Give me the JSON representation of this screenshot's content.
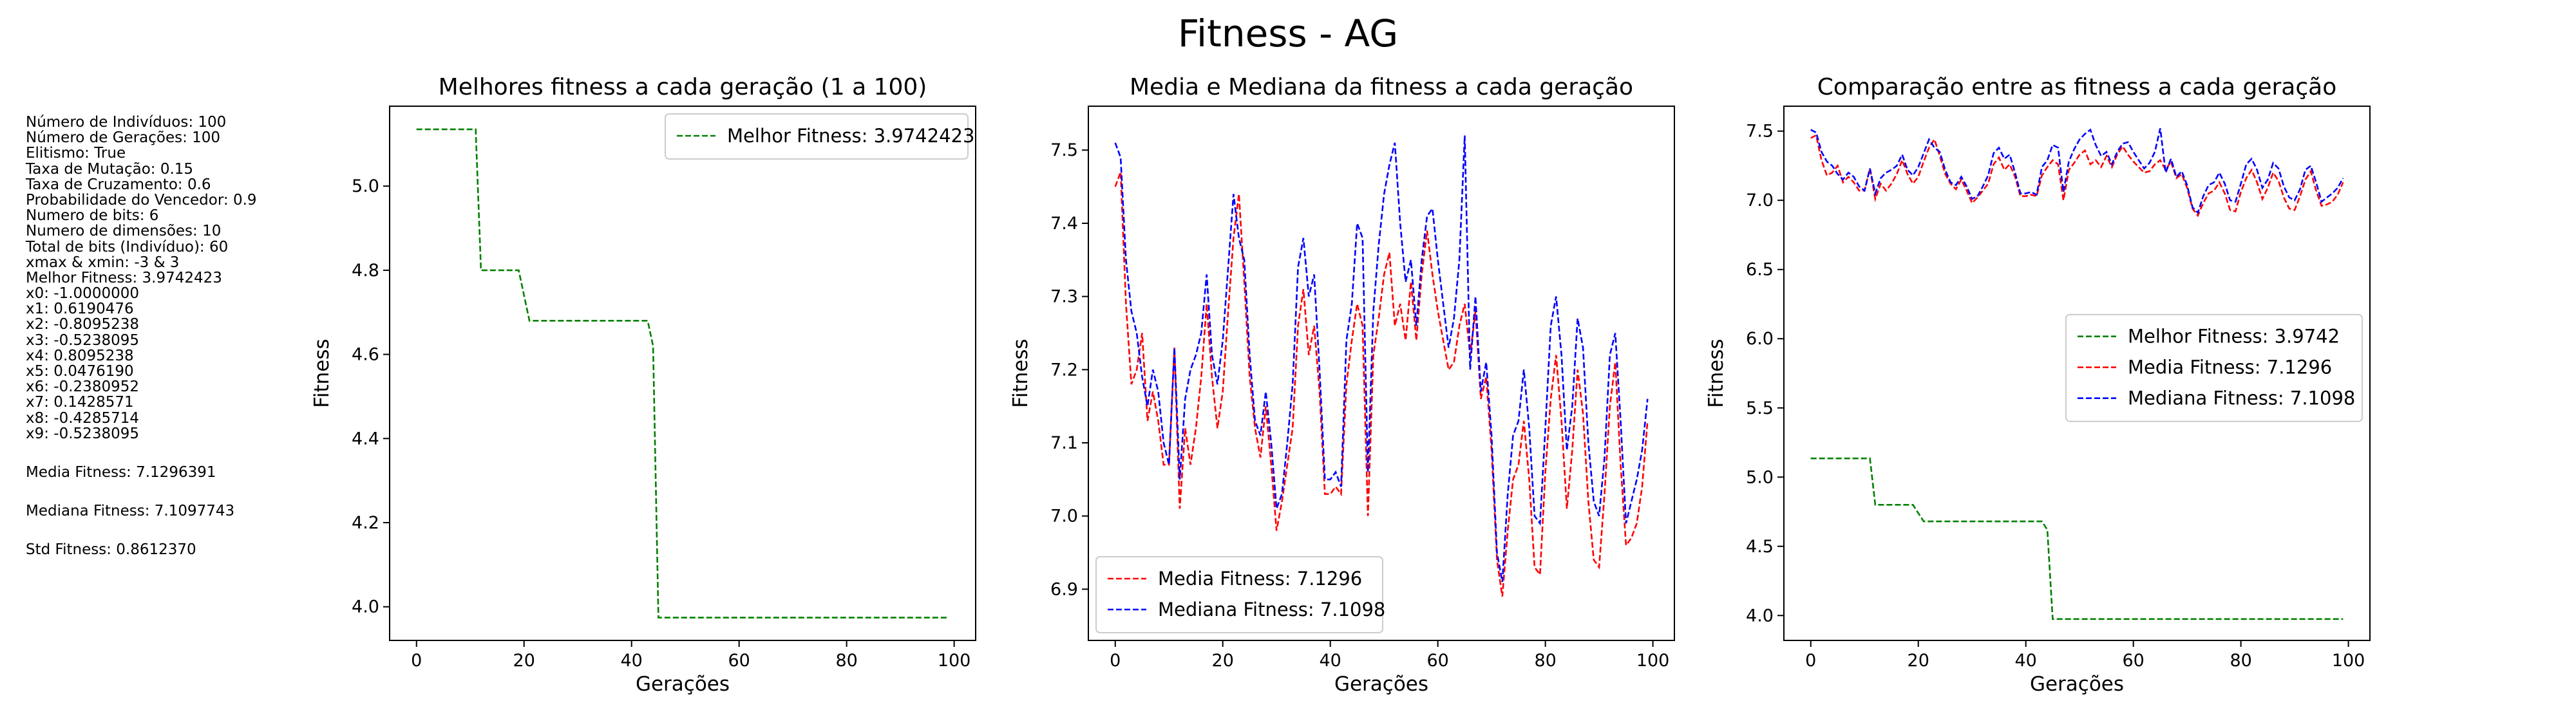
{
  "figure": {
    "suptitle": "Fitness - AG"
  },
  "info_panel": {
    "lines": [
      "Número de Indivíduos: 100",
      "Número de Gerações: 100",
      "Elitismo: True",
      "Taxa de Mutação: 0.15",
      "Taxa de Cruzamento: 0.6",
      "Probabilidade do Vencedor: 0.9",
      "Numero de bits: 6",
      "Numero de dimensões: 10",
      "Total de bits (Indivíduo): 60",
      "xmax & xmin: -3 & 3",
      "Melhor Fitness: 3.9742423",
      "x0: -1.0000000",
      "x1: 0.6190476",
      "x2: -0.8095238",
      "x3: -0.5238095",
      "x4: 0.8095238",
      "x5: 0.0476190",
      "x6: -0.2380952",
      "x7: 0.1428571",
      "x8: -0.4285714",
      "x9: -0.5238095"
    ],
    "media": "Media Fitness: 7.1296391",
    "mediana": "Mediana Fitness: 7.1097743",
    "std": "Std Fitness: 0.8612370"
  },
  "colors": {
    "best": "#008000",
    "media": "#ff0000",
    "mediana": "#0000ff"
  },
  "chart_data": [
    {
      "type": "line",
      "title": "Melhores fitness a cada geração (1 a 100)",
      "xlabel": "Gerações",
      "ylabel": "Fitness",
      "xlim": [
        -5,
        104
      ],
      "ylim": [
        3.92,
        5.19
      ],
      "xticks": [
        0,
        20,
        40,
        60,
        80,
        100
      ],
      "yticks": [
        4.0,
        4.2,
        4.4,
        4.6,
        4.8,
        5.0
      ],
      "ytick_labels": [
        "4.0",
        "4.2",
        "4.4",
        "4.6",
        "4.8",
        "5.0"
      ],
      "legend_loc": "upper right",
      "grid": false,
      "series": [
        {
          "name": "Melhor Fitness: 3.9742423",
          "color": "#008000",
          "style": "dashed",
          "points": [
            [
              0,
              5.135
            ],
            [
              11,
              5.135
            ],
            [
              12,
              4.8
            ],
            [
              19,
              4.8
            ],
            [
              21,
              4.68
            ],
            [
              43,
              4.68
            ],
            [
              44,
              4.62
            ],
            [
              45,
              3.9742
            ],
            [
              99,
              3.9742
            ]
          ]
        }
      ]
    },
    {
      "type": "line",
      "title": "Media e Mediana da fitness a cada geração",
      "xlabel": "Gerações",
      "ylabel": "Fitness",
      "xlim": [
        -5,
        104
      ],
      "ylim": [
        6.83,
        7.56
      ],
      "xticks": [
        0,
        20,
        40,
        60,
        80,
        100
      ],
      "yticks": [
        6.9,
        7.0,
        7.1,
        7.2,
        7.3,
        7.4,
        7.5
      ],
      "ytick_labels": [
        "6.9",
        "7.0",
        "7.1",
        "7.2",
        "7.3",
        "7.4",
        "7.5"
      ],
      "legend_loc": "lower left",
      "grid": false,
      "series": [
        {
          "name": "Media Fitness: 7.1296",
          "color": "#ff0000",
          "style": "dashed",
          "values": [
            7.45,
            7.47,
            7.29,
            7.18,
            7.2,
            7.25,
            7.13,
            7.17,
            7.13,
            7.07,
            7.07,
            7.23,
            7.01,
            7.12,
            7.07,
            7.12,
            7.19,
            7.29,
            7.19,
            7.12,
            7.17,
            7.28,
            7.38,
            7.44,
            7.32,
            7.19,
            7.12,
            7.08,
            7.15,
            7.07,
            6.98,
            7.02,
            7.07,
            7.12,
            7.26,
            7.31,
            7.22,
            7.26,
            7.17,
            7.03,
            7.03,
            7.04,
            7.03,
            7.18,
            7.24,
            7.29,
            7.26,
            7.0,
            7.22,
            7.27,
            7.33,
            7.36,
            7.26,
            7.29,
            7.24,
            7.32,
            7.24,
            7.33,
            7.39,
            7.33,
            7.28,
            7.24,
            7.2,
            7.21,
            7.26,
            7.29,
            7.22,
            7.28,
            7.16,
            7.19,
            7.09,
            6.94,
            6.89,
            6.98,
            7.05,
            7.07,
            7.13,
            7.05,
            6.93,
            6.92,
            7.06,
            7.16,
            7.22,
            7.13,
            7.01,
            7.09,
            7.2,
            7.14,
            7.02,
            6.94,
            6.93,
            7.03,
            7.15,
            7.21,
            7.07,
            6.96,
            6.97,
            6.99,
            7.04,
            7.13
          ]
        },
        {
          "name": "Mediana Fitness: 7.1098",
          "color": "#0000ff",
          "style": "dashed",
          "values": [
            7.51,
            7.49,
            7.35,
            7.28,
            7.25,
            7.19,
            7.15,
            7.2,
            7.17,
            7.1,
            7.07,
            7.23,
            7.05,
            7.16,
            7.2,
            7.22,
            7.25,
            7.33,
            7.22,
            7.18,
            7.24,
            7.34,
            7.44,
            7.38,
            7.35,
            7.22,
            7.13,
            7.11,
            7.17,
            7.1,
            7.01,
            7.03,
            7.1,
            7.18,
            7.34,
            7.38,
            7.3,
            7.33,
            7.2,
            7.05,
            7.05,
            7.06,
            7.04,
            7.24,
            7.29,
            7.4,
            7.38,
            7.06,
            7.28,
            7.37,
            7.44,
            7.48,
            7.51,
            7.4,
            7.32,
            7.35,
            7.26,
            7.35,
            7.41,
            7.42,
            7.35,
            7.29,
            7.23,
            7.27,
            7.35,
            7.52,
            7.2,
            7.3,
            7.17,
            7.21,
            7.11,
            6.95,
            6.91,
            7.03,
            7.11,
            7.13,
            7.2,
            7.12,
            7.0,
            6.99,
            7.12,
            7.26,
            7.3,
            7.22,
            7.09,
            7.15,
            7.27,
            7.23,
            7.1,
            7.02,
            7.0,
            7.08,
            7.22,
            7.25,
            7.13,
            6.99,
            7.02,
            7.05,
            7.09,
            7.16
          ]
        }
      ]
    },
    {
      "type": "line",
      "title": "Comparação entre as fitness a cada geração",
      "xlabel": "Gerações",
      "ylabel": "Fitness",
      "xlim": [
        -5,
        104
      ],
      "ylim": [
        3.82,
        7.68
      ],
      "xticks": [
        0,
        20,
        40,
        60,
        80,
        100
      ],
      "yticks": [
        4.0,
        4.5,
        5.0,
        5.5,
        6.0,
        6.5,
        7.0,
        7.5
      ],
      "ytick_labels": [
        "4.0",
        "4.5",
        "5.0",
        "5.5",
        "6.0",
        "6.5",
        "7.0",
        "7.5"
      ],
      "legend_loc": "center right",
      "grid": false,
      "series": [
        {
          "name": "Melhor Fitness: 3.9742",
          "color": "#008000",
          "style": "dashed",
          "points": [
            [
              0,
              5.135
            ],
            [
              11,
              5.135
            ],
            [
              12,
              4.8
            ],
            [
              19,
              4.8
            ],
            [
              21,
              4.68
            ],
            [
              43,
              4.68
            ],
            [
              44,
              4.62
            ],
            [
              45,
              3.9742
            ],
            [
              99,
              3.9742
            ]
          ]
        },
        {
          "name": "Media Fitness: 7.1296",
          "color": "#ff0000",
          "style": "dashed",
          "ref": "media"
        },
        {
          "name": "Mediana Fitness: 7.1098",
          "color": "#0000ff",
          "style": "dashed",
          "ref": "mediana"
        }
      ]
    }
  ]
}
